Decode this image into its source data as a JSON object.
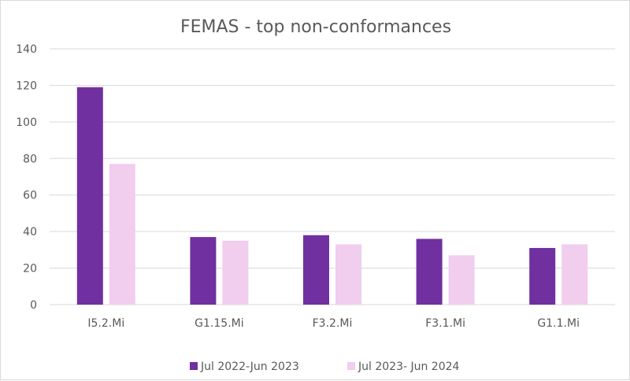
{
  "chart_data": {
    "type": "bar",
    "title": "FEMAS - top non-conformances",
    "categories": [
      "I5.2.Mi",
      "G1.15.Mi",
      "F3.2.Mi",
      "F3.1.Mi",
      "G1.1.Mi"
    ],
    "series": [
      {
        "name": "Jul 2022-Jun 2023",
        "values": [
          119,
          37,
          38,
          36,
          31
        ],
        "color": "#7030a0"
      },
      {
        "name": "Jul 2023- Jun 2024",
        "values": [
          77,
          35,
          33,
          27,
          33
        ],
        "color": "#f1cdee"
      }
    ],
    "ylim": [
      0,
      140
    ],
    "yticks": [
      "0",
      "20",
      "40",
      "60",
      "80",
      "100",
      "120",
      "140"
    ],
    "grid": true,
    "legend_position": "bottom",
    "xlabel": "",
    "ylabel": ""
  }
}
